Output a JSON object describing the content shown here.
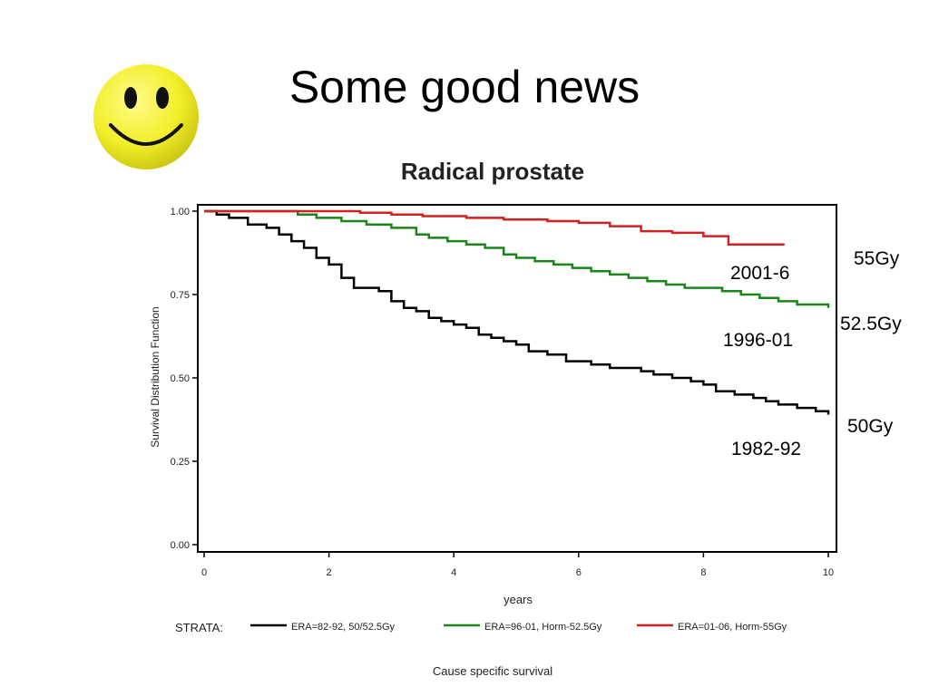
{
  "slide": {
    "title": "Some good news"
  },
  "icons": {
    "smiley": "smiley-face-icon"
  },
  "colors": {
    "era_82_92": "#000000",
    "era_96_01": "#1a861a",
    "era_01_06": "#d42020",
    "smiley_face": "#f2ee2a"
  },
  "annotations": {
    "label_2001": "2001-6",
    "label_1996": "1996-01",
    "label_1982": "1982-92",
    "dose_55": "55Gy",
    "dose_525": "52.5Gy",
    "dose_50": "50Gy"
  },
  "chart_data": {
    "type": "line",
    "step": true,
    "title": "Radical prostate",
    "xlabel": "years",
    "ylabel": "Survival Distribution Function",
    "caption": "Cause specific survival",
    "legend_title": "STRATA:",
    "legend_position": "bottom",
    "xlim": [
      0,
      10
    ],
    "ylim": [
      0,
      1
    ],
    "x_ticks": [
      "0",
      "2",
      "4",
      "6",
      "8",
      "10"
    ],
    "y_ticks": [
      "0.00",
      "0.25",
      "0.50",
      "0.75",
      "1.00"
    ],
    "grid": false,
    "series": [
      {
        "name": "ERA=82-92, 50/52.5Gy",
        "color": "#000000",
        "x": [
          0,
          0.2,
          0.4,
          0.7,
          1.0,
          1.2,
          1.4,
          1.6,
          1.8,
          2.0,
          2.2,
          2.4,
          2.6,
          2.8,
          3.0,
          3.2,
          3.4,
          3.6,
          3.8,
          4.0,
          4.2,
          4.4,
          4.6,
          4.8,
          5.0,
          5.2,
          5.5,
          5.8,
          6.0,
          6.2,
          6.5,
          6.8,
          7.0,
          7.2,
          7.5,
          7.8,
          8.0,
          8.2,
          8.5,
          8.8,
          9.0,
          9.2,
          9.5,
          9.8,
          10.0
        ],
        "y": [
          1.0,
          0.99,
          0.98,
          0.96,
          0.95,
          0.93,
          0.91,
          0.89,
          0.86,
          0.84,
          0.8,
          0.77,
          0.77,
          0.76,
          0.73,
          0.71,
          0.7,
          0.68,
          0.67,
          0.66,
          0.65,
          0.63,
          0.62,
          0.61,
          0.6,
          0.58,
          0.57,
          0.55,
          0.55,
          0.54,
          0.53,
          0.53,
          0.52,
          0.51,
          0.5,
          0.49,
          0.48,
          0.46,
          0.45,
          0.44,
          0.43,
          0.42,
          0.41,
          0.4,
          0.39
        ]
      },
      {
        "name": "ERA=96-01, Horm-52.5Gy",
        "color": "#1a861a",
        "x": [
          0,
          1.5,
          1.8,
          2.2,
          2.6,
          3.0,
          3.4,
          3.6,
          3.9,
          4.2,
          4.5,
          4.8,
          5.0,
          5.3,
          5.6,
          5.9,
          6.2,
          6.5,
          6.8,
          7.1,
          7.4,
          7.7,
          8.0,
          8.3,
          8.6,
          8.9,
          9.2,
          9.5,
          9.8,
          10.0
        ],
        "y": [
          1.0,
          0.99,
          0.98,
          0.97,
          0.96,
          0.95,
          0.93,
          0.92,
          0.91,
          0.9,
          0.89,
          0.87,
          0.86,
          0.85,
          0.84,
          0.83,
          0.82,
          0.81,
          0.8,
          0.79,
          0.78,
          0.77,
          0.77,
          0.76,
          0.75,
          0.74,
          0.73,
          0.72,
          0.72,
          0.71
        ]
      },
      {
        "name": "ERA=01-06, Horm-55Gy",
        "color": "#d42020",
        "x": [
          0,
          2.5,
          3.0,
          3.5,
          4.2,
          4.8,
          5.5,
          6.0,
          6.5,
          7.0,
          7.5,
          8.0,
          8.4,
          9.3
        ],
        "y": [
          1.0,
          0.995,
          0.99,
          0.985,
          0.98,
          0.975,
          0.97,
          0.965,
          0.955,
          0.94,
          0.935,
          0.925,
          0.9,
          0.9
        ]
      }
    ]
  }
}
